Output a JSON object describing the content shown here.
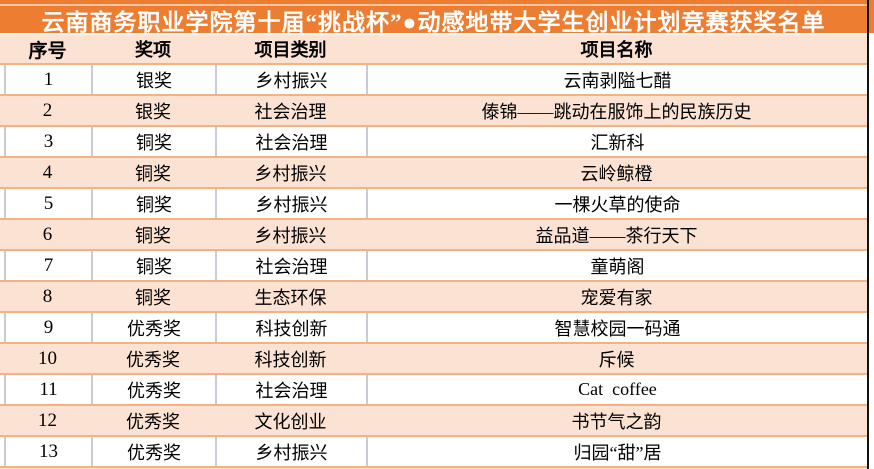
{
  "title": "云南商务职业学院第十届“挑战杯”●动感地带大学生创业计划竞赛获奖名单",
  "colors": {
    "orange": "#ED7D31",
    "peach": "#FBE2D3",
    "border_orange": "#F4B183",
    "border_gray": "#C7CCD6",
    "right_border_black": "#111111",
    "title_text": "#FFFFFF",
    "body_text": "#000000"
  },
  "table": {
    "headers": [
      "序号",
      "奖项",
      "项目类别",
      "项目名称"
    ],
    "rows": [
      {
        "no": "1",
        "award": "银奖",
        "category": "乡村振兴",
        "name": "云南剥隘七醋"
      },
      {
        "no": "2",
        "award": "银奖",
        "category": "社会治理",
        "name": "傣锦——跳动在服饰上的民族历史"
      },
      {
        "no": "3",
        "award": "铜奖",
        "category": "社会治理",
        "name": "汇新科"
      },
      {
        "no": "4",
        "award": "铜奖",
        "category": "乡村振兴",
        "name": "云岭鲸橙"
      },
      {
        "no": "5",
        "award": "铜奖",
        "category": "乡村振兴",
        "name": "一棵火草的使命"
      },
      {
        "no": "6",
        "award": "铜奖",
        "category": "乡村振兴",
        "name": "益品道——茶行天下"
      },
      {
        "no": "7",
        "award": "铜奖",
        "category": "社会治理",
        "name": "童萌阁"
      },
      {
        "no": "8",
        "award": "铜奖",
        "category": "生态环保",
        "name": "宠爱有家"
      },
      {
        "no": "9",
        "award": "优秀奖",
        "category": "科技创新",
        "name": "智慧校园一码通"
      },
      {
        "no": "10",
        "award": "优秀奖",
        "category": "科技创新",
        "name": "斥候"
      },
      {
        "no": "11",
        "award": "优秀奖",
        "category": "社会治理",
        "name": "Cat  coffee"
      },
      {
        "no": "12",
        "award": "优秀奖",
        "category": "文化创业",
        "name": "书节气之韵"
      },
      {
        "no": "13",
        "award": "优秀奖",
        "category": "乡村振兴",
        "name": "归园“甜”居"
      }
    ]
  }
}
